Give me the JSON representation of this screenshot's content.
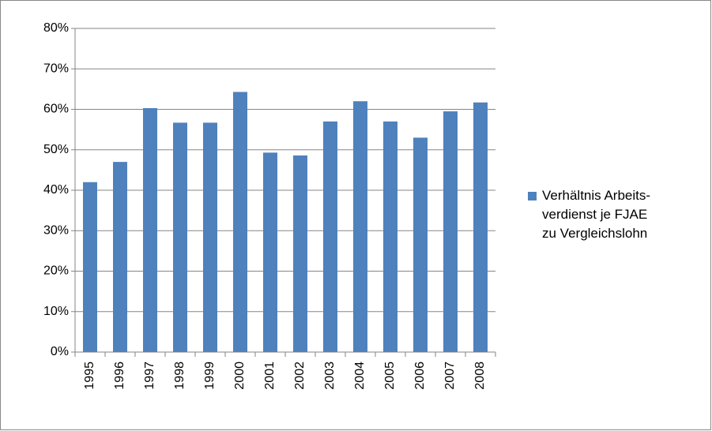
{
  "chart_data": {
    "type": "bar",
    "categories": [
      "1995",
      "1996",
      "1997",
      "1998",
      "1999",
      "2000",
      "2001",
      "2002",
      "2003",
      "2004",
      "2005",
      "2006",
      "2007",
      "2008"
    ],
    "series": [
      {
        "name": "Verhältnis Arbeits-verdienst je FJAE zu Vergleichslohn",
        "color": "#4f81bd",
        "values": [
          42,
          47,
          60.3,
          56.7,
          56.7,
          64.3,
          49.3,
          48.6,
          57,
          62,
          57,
          53,
          59.5,
          61.7
        ]
      }
    ],
    "ylim": [
      0,
      80
    ],
    "yticks": [
      {
        "value": 0,
        "label": "0%"
      },
      {
        "value": 10,
        "label": "10%"
      },
      {
        "value": 20,
        "label": "20%"
      },
      {
        "value": 30,
        "label": "30%"
      },
      {
        "value": 40,
        "label": "40%"
      },
      {
        "value": 50,
        "label": "50%"
      },
      {
        "value": 60,
        "label": "60%"
      },
      {
        "value": 70,
        "label": "70%"
      },
      {
        "value": 80,
        "label": "80%"
      }
    ],
    "grid": true,
    "legend": "right"
  }
}
